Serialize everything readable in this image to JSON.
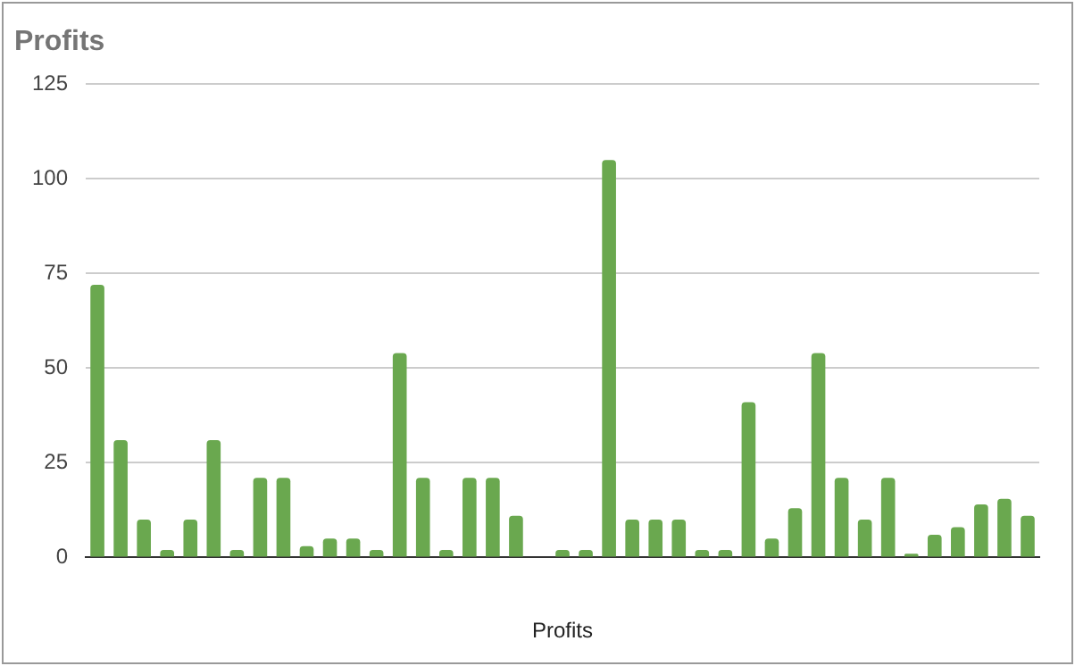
{
  "chart_data": {
    "type": "bar",
    "title": "Profits",
    "xlabel": "Profits",
    "categories": [
      null,
      null,
      null,
      null,
      null,
      null,
      null,
      null,
      null,
      null,
      null,
      null,
      null,
      null,
      null,
      null,
      null,
      null,
      null,
      null,
      null,
      null,
      null,
      null,
      null,
      null,
      null,
      null,
      null,
      null,
      null,
      null,
      null,
      null,
      null,
      null,
      null,
      null,
      null,
      null,
      null
    ],
    "series": [
      {
        "color": "#6aa84f",
        "values": [
          72,
          31,
          10,
          2,
          10,
          31,
          2,
          21,
          21,
          3,
          5,
          5,
          2,
          54,
          21,
          2,
          21,
          21,
          11,
          0,
          2,
          2,
          105,
          10,
          10,
          10,
          2,
          2,
          41,
          5,
          13,
          54,
          21,
          10,
          21,
          1,
          6,
          8,
          14,
          15.5,
          11
        ]
      }
    ],
    "ylim": [
      0,
      125
    ],
    "yticks": [
      0,
      25,
      50,
      75,
      100,
      125
    ],
    "grid": "y",
    "legend": false
  }
}
